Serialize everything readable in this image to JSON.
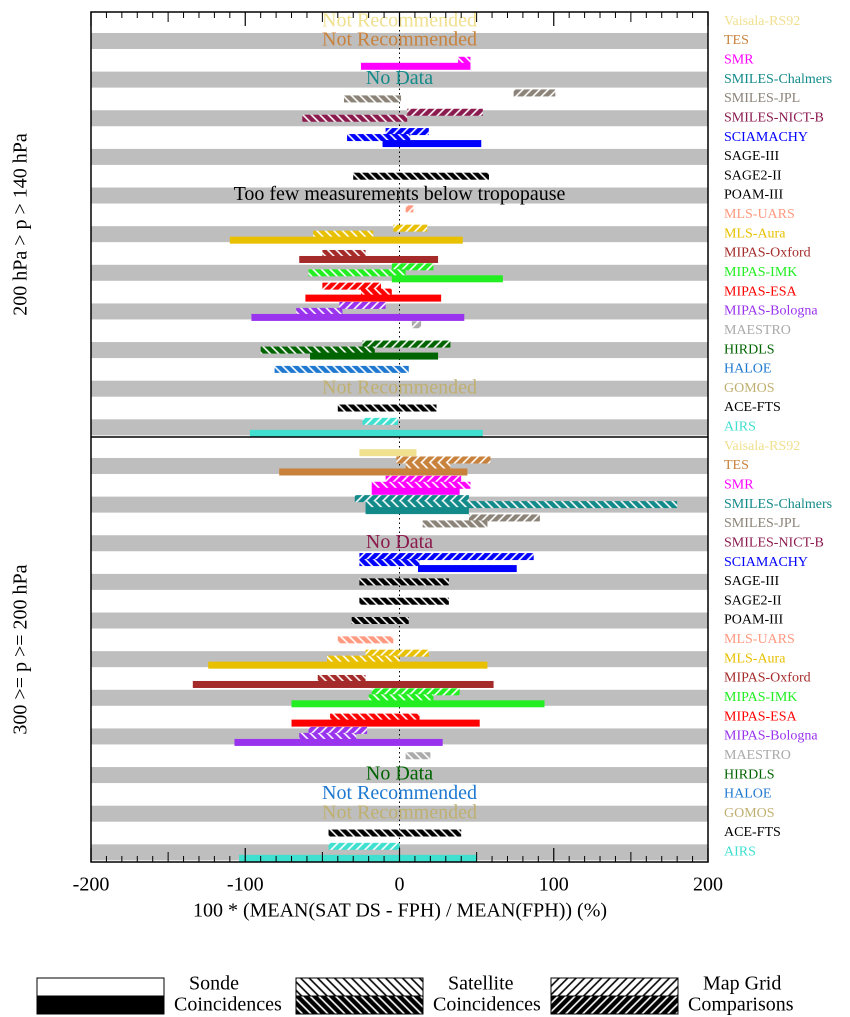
{
  "chart_data": {
    "type": "range-bar",
    "xlabel": "100 * (MEAN(SAT DS - FPH) / MEAN(FPH)) (%)",
    "xlim": [
      -200,
      200
    ],
    "xticks": [
      -200,
      -100,
      0,
      100,
      200
    ],
    "legend": {
      "sonde": [
        "Sonde",
        "Coincidences"
      ],
      "satellite": [
        "Satellite",
        "Coincidences"
      ],
      "mapgrid": [
        "Map Grid",
        "Comparisons"
      ]
    },
    "panels": [
      {
        "label": "200 hPa  > p > 140 hPa",
        "rows": [
          {
            "name": "Vaisala-RS92",
            "color": "#f0e090",
            "note": "Not Recommended"
          },
          {
            "name": "TES",
            "color": "#c8823c",
            "note": "Not Recommended"
          },
          {
            "name": "SMR",
            "color": "#ff00ff",
            "satellite": [
              38,
              46
            ],
            "sonde": [
              -25,
              46
            ]
          },
          {
            "name": "SMILES-Chalmers",
            "color": "#138a8a",
            "note": "No Data"
          },
          {
            "name": "SMILES-JPL",
            "color": "#8b8378",
            "mapgrid": [
              74,
              101
            ],
            "satellite": [
              -36,
              1
            ]
          },
          {
            "name": "SMILES-NICT-B",
            "color": "#8b1a4e",
            "mapgrid": [
              5,
              54
            ],
            "satellite": [
              -63,
              5
            ]
          },
          {
            "name": "SCIAMACHY",
            "color": "#0000ff",
            "mapgrid": [
              -9,
              19
            ],
            "satellite": [
              -34,
              7
            ],
            "sonde": [
              -11,
              53
            ]
          },
          {
            "name": "SAGE-III",
            "color": "#000000"
          },
          {
            "name": "SAGE2-II",
            "color": "#000000",
            "satellite": [
              -30,
              58
            ]
          },
          {
            "name": "POAM-III",
            "color": "#000000",
            "note": "Too few measurements below tropopause"
          },
          {
            "name": "MLS-UARS",
            "color": "#ff9980",
            "mapgrid": [
              4,
              9
            ]
          },
          {
            "name": "MLS-Aura",
            "color": "#e8c000",
            "mapgrid": [
              -4,
              18
            ],
            "satellite": [
              -56,
              -17
            ],
            "sonde": [
              -110,
              41
            ]
          },
          {
            "name": "MIPAS-Oxford",
            "color": "#a52a2a",
            "satellite": [
              -50,
              -22
            ],
            "sonde": [
              -65,
              25
            ]
          },
          {
            "name": "MIPAS-IMK",
            "color": "#22ee22",
            "mapgrid": [
              -5,
              22
            ],
            "satellite": [
              -59,
              4
            ],
            "sonde": [
              -5,
              67
            ]
          },
          {
            "name": "MIPAS-ESA",
            "color": "#ff0000",
            "mapgrid": [
              -50,
              -12
            ],
            "satellite": [
              -25,
              -5
            ],
            "sonde": [
              -61,
              27
            ]
          },
          {
            "name": "MIPAS-Bologna",
            "color": "#9933ee",
            "mapgrid": [
              -39,
              -9
            ],
            "satellite": [
              -67,
              -37
            ],
            "sonde": [
              -96,
              42
            ]
          },
          {
            "name": "MAESTRO",
            "color": "#aaaaaa",
            "mapgrid": [
              8,
              14
            ]
          },
          {
            "name": "HIRDLS",
            "color": "#006400",
            "mapgrid": [
              -24,
              33
            ],
            "satellite": [
              -90,
              -16
            ],
            "sonde": [
              -58,
              25
            ]
          },
          {
            "name": "HALOE",
            "color": "#1e78d0",
            "satellite": [
              -81,
              6
            ]
          },
          {
            "name": "GOMOS",
            "color": "#c0b070",
            "note": "Not Recommended"
          },
          {
            "name": "ACE-FTS",
            "color": "#000000",
            "satellite": [
              -40,
              24
            ]
          },
          {
            "name": "AIRS",
            "color": "#40e0d0",
            "mapgrid": [
              -24,
              -1
            ],
            "sonde": [
              -97,
              54
            ]
          }
        ]
      },
      {
        "label": "300 >= p >= 200 hPa",
        "rows": [
          {
            "name": "Vaisala-RS92",
            "color": "#f0e090",
            "sonde": [
              -26,
              11
            ]
          },
          {
            "name": "TES",
            "color": "#c8823c",
            "mapgrid": [
              -2,
              59
            ],
            "satellite": [
              4,
              33
            ],
            "sonde": [
              -78,
              44
            ]
          },
          {
            "name": "SMR",
            "color": "#ff00ff",
            "mapgrid": [
              -9,
              40
            ],
            "satellite": [
              -18,
              46
            ],
            "sonde": [
              -18,
              39
            ]
          },
          {
            "name": "SMILES-Chalmers",
            "color": "#138a8a",
            "mapgrid": [
              -29,
              45
            ],
            "satellite": [
              -22,
              180
            ],
            "sonde": [
              -22,
              45
            ]
          },
          {
            "name": "SMILES-JPL",
            "color": "#8b8378",
            "mapgrid": [
              45,
              91
            ],
            "satellite": [
              15,
              57
            ]
          },
          {
            "name": "SMILES-NICT-B",
            "color": "#8b1a4e",
            "note": "No Data"
          },
          {
            "name": "SCIAMACHY",
            "color": "#0000ff",
            "mapgrid": [
              -26,
              87
            ],
            "satellite": [
              -26,
              13
            ],
            "sonde": [
              12,
              76
            ]
          },
          {
            "name": "SAGE-III",
            "color": "#000000",
            "satellite": [
              -26,
              32
            ]
          },
          {
            "name": "SAGE2-II",
            "color": "#000000",
            "satellite": [
              -26,
              32
            ]
          },
          {
            "name": "POAM-III",
            "color": "#000000",
            "satellite": [
              -31,
              6
            ]
          },
          {
            "name": "MLS-UARS",
            "color": "#ff9980",
            "satellite": [
              -40,
              -4
            ]
          },
          {
            "name": "MLS-Aura",
            "color": "#e8c000",
            "mapgrid": [
              -22,
              19
            ],
            "satellite": [
              -47,
              0
            ],
            "sonde": [
              -124,
              57
            ]
          },
          {
            "name": "MIPAS-Oxford",
            "color": "#a52a2a",
            "satellite": [
              -53,
              -22
            ],
            "sonde": [
              -134,
              61
            ]
          },
          {
            "name": "MIPAS-IMK",
            "color": "#22ee22",
            "mapgrid": [
              -18,
              39
            ],
            "satellite": [
              -20,
              22
            ],
            "sonde": [
              -70,
              94
            ]
          },
          {
            "name": "MIPAS-ESA",
            "color": "#ff0000",
            "satellite": [
              -45,
              13
            ],
            "sonde": [
              -70,
              52
            ]
          },
          {
            "name": "MIPAS-Bologna",
            "color": "#9933ee",
            "mapgrid": [
              -59,
              -21
            ],
            "satellite": [
              -65,
              -28
            ],
            "sonde": [
              -107,
              28
            ]
          },
          {
            "name": "MAESTRO",
            "color": "#aaaaaa",
            "satellite": [
              4,
              20
            ]
          },
          {
            "name": "HIRDLS",
            "color": "#006400",
            "note": "No Data"
          },
          {
            "name": "HALOE",
            "color": "#1e78d0",
            "note": "Not Recommended"
          },
          {
            "name": "GOMOS",
            "color": "#c0b070",
            "note": "Not Recommended"
          },
          {
            "name": "ACE-FTS",
            "color": "#000000",
            "satellite": [
              -46,
              40
            ]
          },
          {
            "name": "AIRS",
            "color": "#40e0d0",
            "mapgrid": [
              -46,
              0
            ],
            "sonde": [
              -104,
              50
            ]
          }
        ]
      }
    ]
  }
}
